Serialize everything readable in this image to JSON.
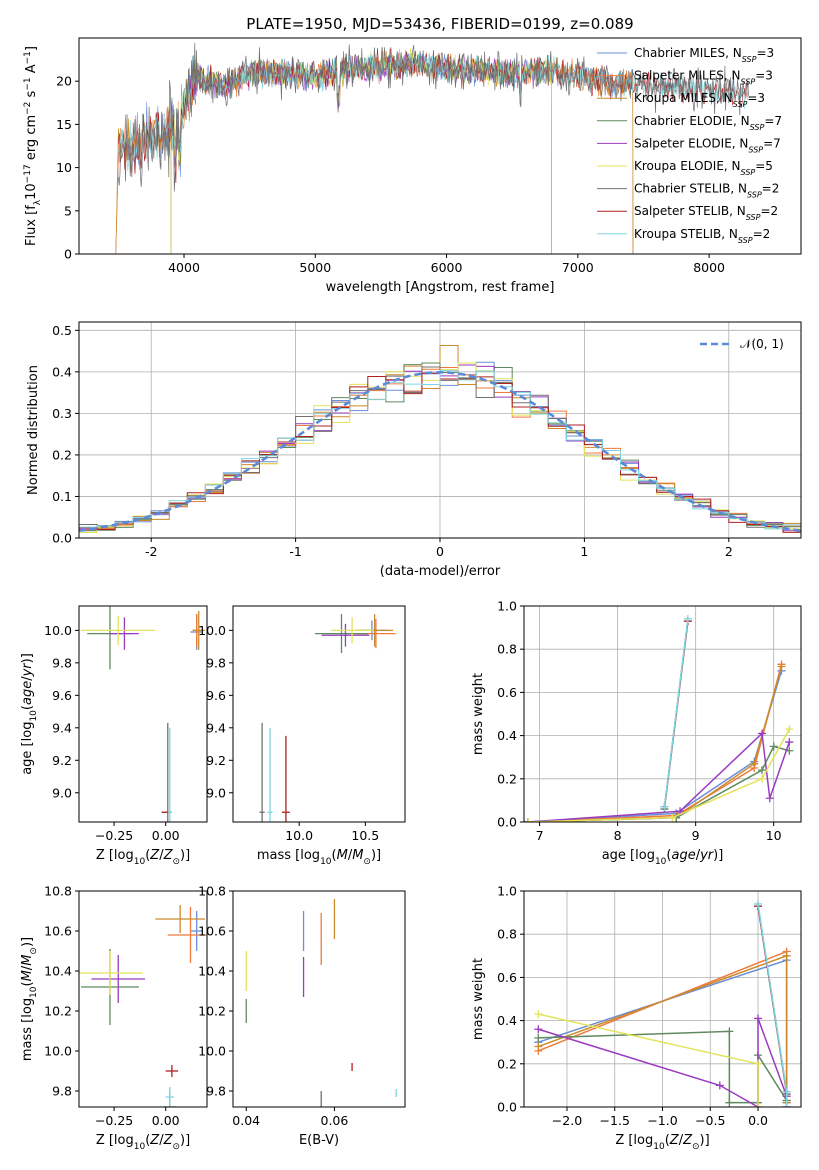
{
  "figure_title": "PLATE=1950, MJD=53436, FIBERID=0199, z=0.089",
  "series_colors": [
    "#6a8fd8",
    "#f07a3c",
    "#cc8a2a",
    "#5f8a5f",
    "#9a3bc0",
    "#e3e35a",
    "#707070",
    "#b02020",
    "#7fd6e0"
  ],
  "chart_data": [
    {
      "type": "line",
      "panel": "spectrum",
      "xlabel": "wavelength [Angstrom, rest frame]",
      "ylabel": "Flux [f_λ 10^-17 erg cm^-2 s^-1 A^-1]",
      "xlim": [
        3200,
        8700
      ],
      "ylim": [
        0,
        25
      ],
      "xticks": [
        4000,
        5000,
        6000,
        7000,
        8000
      ],
      "yticks": [
        0,
        5,
        10,
        15,
        20
      ],
      "legend_position": "upper right",
      "spectrum_anchor": {
        "x": [
          3500,
          3600,
          3700,
          3800,
          3900,
          4000,
          4100,
          4300,
          4500,
          4800,
          5000,
          5200,
          5500,
          5800,
          6000,
          6200,
          6500,
          6800,
          7000,
          7300,
          7500,
          7800,
          8000,
          8300
        ],
        "y": [
          12.5,
          12.0,
          13.5,
          14.0,
          14.5,
          17.0,
          20.5,
          19.5,
          21.0,
          21.0,
          20.5,
          21.2,
          21.8,
          22.0,
          21.5,
          21.3,
          21.0,
          21.2,
          20.5,
          19.8,
          19.5,
          19.3,
          19.0,
          18.6
        ]
      },
      "series": [
        {
          "name": "Chabrier MILES, N_SSP=3",
          "label_main": "Chabrier MILES, N",
          "label_sub": "SSP",
          "label_tail": "=3"
        },
        {
          "name": "Salpeter MILES, N_SSP=3",
          "label_main": "Salpeter MILES, N",
          "label_sub": "SSP",
          "label_tail": "=3"
        },
        {
          "name": "Kroupa MILES, N_SSP=3",
          "label_main": "Kroupa MILES, N",
          "label_sub": "SSP",
          "label_tail": "=3"
        },
        {
          "name": "Chabrier ELODIE, N_SSP=7",
          "label_main": "Chabrier ELODIE, N",
          "label_sub": "SSP",
          "label_tail": "=7"
        },
        {
          "name": "Salpeter ELODIE, N_SSP=7",
          "label_main": "Salpeter ELODIE, N",
          "label_sub": "SSP",
          "label_tail": "=7"
        },
        {
          "name": "Kroupa ELODIE, N_SSP=5",
          "label_main": "Kroupa ELODIE, N",
          "label_sub": "SSP",
          "label_tail": "=5"
        },
        {
          "name": "Chabrier STELIB, N_SSP=2",
          "label_main": "Chabrier STELIB, N",
          "label_sub": "SSP",
          "label_tail": "=2"
        },
        {
          "name": "Salpeter STELIB, N_SSP=2",
          "label_main": "Salpeter STELIB, N",
          "label_sub": "SSP",
          "label_tail": "=2"
        },
        {
          "name": "Kroupa STELIB, N_SSP=2",
          "label_main": "Kroupa STELIB, N",
          "label_sub": "SSP",
          "label_tail": "=2"
        }
      ]
    },
    {
      "type": "histogram",
      "panel": "residuals",
      "xlabel": "(data-model)/error",
      "ylabel": "Normed distribution",
      "xlim": [
        -2.5,
        2.5
      ],
      "ylim": [
        0,
        0.52
      ],
      "xticks": [
        -2,
        -1,
        0,
        1,
        2
      ],
      "yticks": [
        0.0,
        0.1,
        0.2,
        0.3,
        0.4,
        0.5
      ],
      "grid": true,
      "bin_edges": [
        -2.5,
        2.5
      ],
      "n_bins": 40,
      "reference_curve": "N(0,1)",
      "legend_label": "𝒩(0, 1)",
      "legend_position": "upper right"
    },
    {
      "type": "errorbar",
      "panel": "age_vs_Z",
      "xlabel": "Z [log10(Z/Z⊙)]",
      "ylabel": "age [log10(age/yr)]",
      "xlim": [
        -0.42,
        0.2
      ],
      "ylim": [
        8.82,
        10.15
      ],
      "xticks": [
        -0.25,
        0.0
      ],
      "xticklabels": [
        "−0.25",
        "0.00"
      ],
      "yticks": [
        9.0,
        9.2,
        9.4,
        9.6,
        9.8,
        10.0
      ],
      "points": [
        {
          "x": 0.15,
          "y": 9.99,
          "xerr": 0.03,
          "yerr": 0.11
        },
        {
          "x": 0.15,
          "y": 10.0,
          "xerr": 0.02,
          "yerr": 0.1
        },
        {
          "x": 0.16,
          "y": 10.0,
          "xerr": 0.03,
          "yerr": 0.12
        },
        {
          "x": -0.27,
          "y": 9.98,
          "xerr": 0.11,
          "yerr": 0.22
        },
        {
          "x": -0.2,
          "y": 9.98,
          "xerr": 0.07,
          "yerr": 0.1
        },
        {
          "x": -0.23,
          "y": 10.0,
          "xerr": 0.18,
          "yerr": 0.09
        },
        {
          "x": 0.01,
          "y": 8.88,
          "xerr": 0.02,
          "yerr": 0.55
        },
        {
          "x": 0.0,
          "y": 8.88,
          "xerr": 0.02,
          "yerr": 0.0
        },
        {
          "x": 0.02,
          "y": 8.88,
          "xerr": 0.01,
          "yerr": 0.52
        }
      ]
    },
    {
      "type": "errorbar",
      "panel": "age_vs_mass",
      "xlabel": "mass [log10(M/M⊙)]",
      "ylabel": "",
      "xlim": [
        9.5,
        10.8
      ],
      "ylim": [
        8.82,
        10.15
      ],
      "xticks": [
        10.0,
        10.5
      ],
      "xticklabels": [
        "10.0",
        "10.5"
      ],
      "yticks": [
        9.0,
        9.2,
        9.4,
        9.6,
        9.8,
        10.0
      ],
      "points": [
        {
          "x": 10.55,
          "y": 10.0,
          "xerr": 0.12,
          "yerr": 0.06
        },
        {
          "x": 10.58,
          "y": 9.98,
          "xerr": 0.15,
          "yerr": 0.09
        },
        {
          "x": 10.57,
          "y": 10.0,
          "xerr": 0.14,
          "yerr": 0.1
        },
        {
          "x": 10.32,
          "y": 9.98,
          "xerr": 0.2,
          "yerr": 0.12
        },
        {
          "x": 10.35,
          "y": 9.97,
          "xerr": 0.18,
          "yerr": 0.07
        },
        {
          "x": 10.4,
          "y": 10.0,
          "xerr": 0.16,
          "yerr": 0.08
        },
        {
          "x": 9.72,
          "y": 8.88,
          "xerr": 0.02,
          "yerr": 0.55
        },
        {
          "x": 9.9,
          "y": 8.88,
          "xerr": 0.03,
          "yerr": 0.47
        },
        {
          "x": 9.78,
          "y": 8.88,
          "xerr": 0.02,
          "yerr": 0.52
        }
      ]
    },
    {
      "type": "line",
      "panel": "massweight_vs_age",
      "xlabel": "age [log10(age/yr)]",
      "ylabel": "mass weight",
      "xlim": [
        6.8,
        10.35
      ],
      "ylim": [
        0,
        1.0
      ],
      "xticks": [
        7,
        8,
        9,
        10
      ],
      "yticks": [
        0.0,
        0.2,
        0.4,
        0.6,
        0.8,
        1.0
      ],
      "grid": true,
      "series": [
        {
          "x": [
            6.85,
            8.75,
            9.75,
            10.1
          ],
          "y": [
            0.0,
            0.04,
            0.28,
            0.7
          ]
        },
        {
          "x": [
            6.85,
            8.75,
            9.75,
            10.1
          ],
          "y": [
            0.0,
            0.03,
            0.25,
            0.73
          ]
        },
        {
          "x": [
            6.85,
            8.75,
            9.75,
            10.1
          ],
          "y": [
            0.0,
            0.02,
            0.27,
            0.72
          ]
        },
        {
          "x": [
            6.85,
            8.75,
            9.85,
            10.0,
            10.2
          ],
          "y": [
            0.0,
            0.02,
            0.24,
            0.35,
            0.33
          ]
        },
        {
          "x": [
            6.85,
            8.8,
            9.85,
            9.95,
            10.2
          ],
          "y": [
            0.0,
            0.05,
            0.41,
            0.11,
            0.37
          ]
        },
        {
          "x": [
            6.85,
            8.7,
            9.85,
            10.2
          ],
          "y": [
            0.0,
            0.02,
            0.2,
            0.43
          ]
        },
        {
          "x": [
            8.6,
            8.9
          ],
          "y": [
            0.06,
            0.93
          ]
        },
        {
          "x": [
            8.6,
            8.9
          ],
          "y": [
            0.07,
            0.93
          ]
        },
        {
          "x": [
            8.6,
            8.9
          ],
          "y": [
            0.07,
            0.94
          ]
        }
      ]
    },
    {
      "type": "errorbar",
      "panel": "mass_vs_Z",
      "xlabel": "Z [log10(Z/Z⊙)]",
      "ylabel": "mass [log10(M/M⊙)]",
      "xlim": [
        -0.42,
        0.2
      ],
      "ylim": [
        9.72,
        10.8
      ],
      "xticks": [
        -0.25,
        0.0
      ],
      "xticklabels": [
        "−0.25",
        "0.00"
      ],
      "yticks": [
        9.8,
        10.0,
        10.2,
        10.4,
        10.6,
        10.8
      ],
      "points": [
        {
          "x": 0.15,
          "y": 10.6,
          "xerr": 0.03,
          "yerr": 0.1
        },
        {
          "x": 0.12,
          "y": 10.58,
          "xerr": 0.11,
          "yerr": 0.14
        },
        {
          "x": 0.07,
          "y": 10.66,
          "xerr": 0.12,
          "yerr": 0.07
        },
        {
          "x": -0.27,
          "y": 10.32,
          "xerr": 0.14,
          "yerr": 0.19
        },
        {
          "x": -0.23,
          "y": 10.36,
          "xerr": 0.13,
          "yerr": 0.12
        },
        {
          "x": -0.27,
          "y": 10.39,
          "xerr": 0.16,
          "yerr": 0.11
        },
        {
          "x": 0.02,
          "y": 9.72,
          "xerr": 0.03,
          "yerr": 0.08
        },
        {
          "x": 0.03,
          "y": 9.9,
          "xerr": 0.03,
          "yerr": 0.03
        },
        {
          "x": 0.02,
          "y": 9.77,
          "xerr": 0.02,
          "yerr": 0.05
        }
      ]
    },
    {
      "type": "errorbar",
      "panel": "mass_vs_ebv",
      "xlabel": "E(B-V)",
      "ylabel": "",
      "xlim": [
        0.037,
        0.076
      ],
      "ylim": [
        9.72,
        10.8
      ],
      "xticks": [
        0.04,
        0.06
      ],
      "xticklabels": [
        "0.04",
        "0.06"
      ],
      "yticks": [
        9.8,
        10.0,
        10.2,
        10.4,
        10.6,
        10.8
      ],
      "points": [
        {
          "x": 0.053,
          "y": 10.6,
          "xerr": 0.0,
          "yerr": 0.1
        },
        {
          "x": 0.057,
          "y": 10.56,
          "xerr": 0.0,
          "yerr": 0.13
        },
        {
          "x": 0.06,
          "y": 10.66,
          "xerr": 0.0,
          "yerr": 0.1
        },
        {
          "x": 0.04,
          "y": 10.2,
          "xerr": 0.0,
          "yerr": 0.06
        },
        {
          "x": 0.053,
          "y": 10.37,
          "xerr": 0.0,
          "yerr": 0.1
        },
        {
          "x": 0.04,
          "y": 10.4,
          "xerr": 0.0,
          "yerr": 0.1
        },
        {
          "x": 0.057,
          "y": 9.76,
          "xerr": 0.0,
          "yerr": 0.04
        },
        {
          "x": 0.064,
          "y": 9.92,
          "xerr": 0.0,
          "yerr": 0.02
        },
        {
          "x": 0.074,
          "y": 9.79,
          "xerr": 0.0,
          "yerr": 0.02
        }
      ]
    },
    {
      "type": "line",
      "panel": "massweight_vs_Z",
      "xlabel": "Z [log10(Z/Z⊙)]",
      "ylabel": "mass weight",
      "xlim": [
        -2.45,
        0.45
      ],
      "ylim": [
        0,
        1.0
      ],
      "xticks": [
        -2.0,
        -1.5,
        -1.0,
        -0.5,
        0.0
      ],
      "xticklabels": [
        "−2.0",
        "−1.5",
        "−1.0",
        "−0.5",
        "0.0"
      ],
      "yticks": [
        0.0,
        0.2,
        0.4,
        0.6,
        0.8,
        1.0
      ],
      "grid": true,
      "series": [
        {
          "x": [
            -2.3,
            0.3,
            0.3
          ],
          "y": [
            0.3,
            0.68,
            0.02
          ]
        },
        {
          "x": [
            -2.3,
            0.3,
            0.3
          ],
          "y": [
            0.26,
            0.72,
            0.03
          ]
        },
        {
          "x": [
            -2.3,
            0.3,
            0.3
          ],
          "y": [
            0.28,
            0.7,
            0.02
          ]
        },
        {
          "x": [
            -2.3,
            -0.3,
            -0.3,
            0.0,
            0.0,
            0.3
          ],
          "y": [
            0.32,
            0.35,
            0.02,
            0.02,
            0.24,
            0.03
          ]
        },
        {
          "x": [
            -2.3,
            -0.4,
            0.0,
            0.0,
            0.3
          ],
          "y": [
            0.36,
            0.1,
            0.0,
            0.41,
            0.05
          ]
        },
        {
          "x": [
            -2.3,
            0.0,
            0.0
          ],
          "y": [
            0.43,
            0.2,
            0.0
          ]
        },
        {
          "x": [
            0.0,
            0.3,
            0.3
          ],
          "y": [
            0.93,
            0.06,
            0.0
          ]
        },
        {
          "x": [
            0.0,
            0.3,
            0.3
          ],
          "y": [
            0.93,
            0.07,
            0.0
          ]
        },
        {
          "x": [
            0.0,
            0.3,
            0.3
          ],
          "y": [
            0.94,
            0.07,
            0.0
          ]
        }
      ]
    }
  ]
}
